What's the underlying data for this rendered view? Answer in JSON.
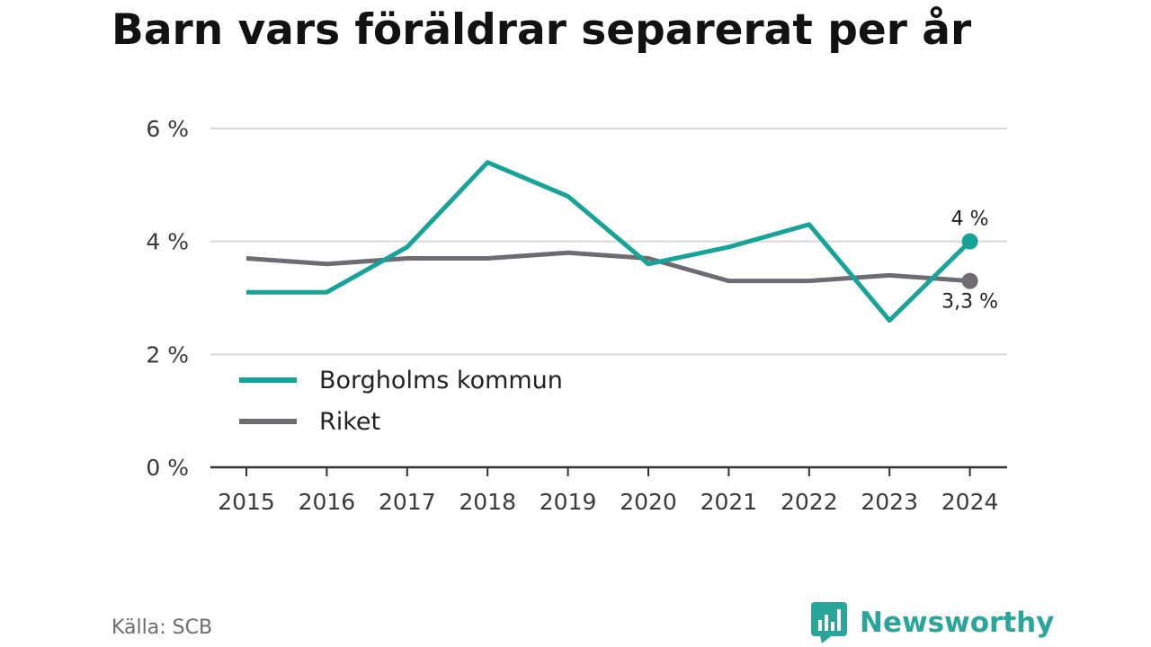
{
  "title": "Barn vars föräldrar separerat per år",
  "source": "Källa: SCB",
  "brand": {
    "name": "Newsworthy",
    "icon": "newsworthy-logo-icon"
  },
  "colors": {
    "kommun": "#16a398",
    "riket": "#6e6c72",
    "grid": "#d8d8d8",
    "axis": "#333333",
    "brand": "#2aa59a"
  },
  "chart_data": {
    "type": "line",
    "x": [
      "2015",
      "2016",
      "2017",
      "2018",
      "2019",
      "2020",
      "2021",
      "2022",
      "2023",
      "2024"
    ],
    "series": [
      {
        "name": "Borgholms kommun",
        "values": [
          3.1,
          3.1,
          3.9,
          5.4,
          4.8,
          3.6,
          3.9,
          4.3,
          2.6,
          4.0
        ]
      },
      {
        "name": "Riket",
        "values": [
          3.7,
          3.6,
          3.7,
          3.7,
          3.8,
          3.7,
          3.3,
          3.3,
          3.4,
          3.3
        ]
      }
    ],
    "ylim": [
      0,
      6
    ],
    "yticks": [
      0,
      2,
      4,
      6
    ],
    "ytick_labels": [
      "0 %",
      "2 %",
      "4 %",
      "6 %"
    ],
    "end_labels": [
      "4 %",
      "3,3 %"
    ],
    "grid": true,
    "legend": "bottom-left inside plot"
  }
}
